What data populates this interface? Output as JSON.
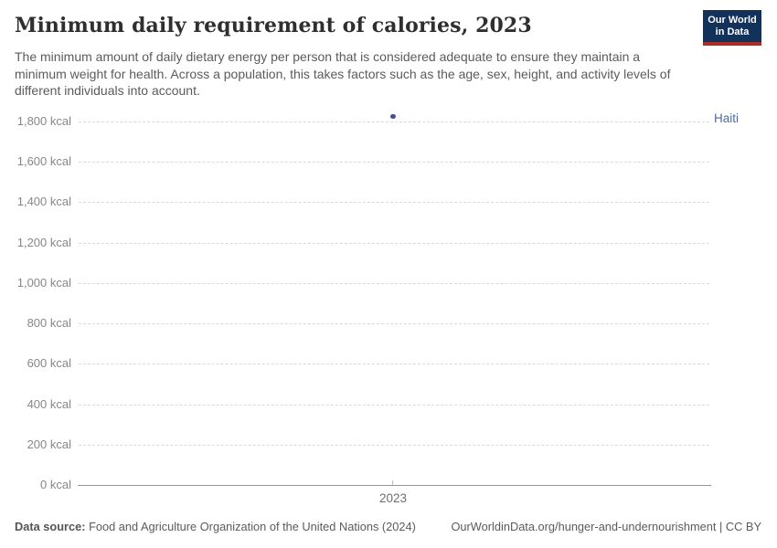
{
  "header": {
    "title": "Minimum daily requirement of calories, 2023",
    "subtitle": "The minimum amount of daily dietary energy per person that is considered adequate to ensure they maintain a minimum weight for health. Across a population, this takes factors such as the age, sex, height, and activity levels of different individuals into account.",
    "logo": {
      "line1": "Our World",
      "line2": "in Data",
      "bg_color": "#12325b",
      "accent_color": "#aa2e25"
    }
  },
  "chart_data": {
    "type": "scatter",
    "title": "Minimum daily requirement of calories, 2023",
    "x_tick_label": "2023",
    "xticks": [
      2023
    ],
    "yticks": [
      0,
      200,
      400,
      600,
      800,
      1000,
      1200,
      1400,
      1600,
      1800
    ],
    "ytick_labels": [
      "0 kcal",
      "200 kcal",
      "400 kcal",
      "600 kcal",
      "800 kcal",
      "1,000 kcal",
      "1,200 kcal",
      "1,400 kcal",
      "1,600 kcal",
      "1,800 kcal"
    ],
    "ylim": [
      0,
      1800
    ],
    "y_unit": "kcal",
    "grid": "horizontal-dashed",
    "legend_position": "right-of-plot",
    "series": [
      {
        "name": "Haiti",
        "color": "#4C6A9C",
        "dot_color": "#3d5490",
        "points": [
          {
            "x": 2023,
            "y": 1825
          }
        ]
      }
    ]
  },
  "footer": {
    "data_source_label": "Data source:",
    "data_source_value": " Food and Agriculture Organization of the United Nations (2024)",
    "attribution": "OurWorldinData.org/hunger-and-undernourishment | CC BY"
  }
}
